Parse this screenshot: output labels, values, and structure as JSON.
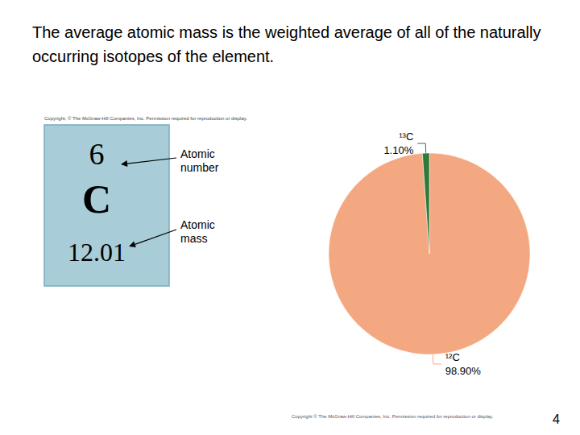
{
  "chart_data": {
    "type": "pie",
    "title": "The average atomic mass is the weighted average of all of the naturally occurring isotopes of the element.",
    "categories": [
      "¹²C",
      "¹³C"
    ],
    "values": [
      98.9,
      1.1
    ],
    "value_labels": [
      "98.90%",
      "1.10%"
    ],
    "colors": [
      "#F4A882",
      "#2D7A3A"
    ],
    "data_labels": true,
    "annotations": [
      "Copyright; © The McGraw-Hill Companies, Inc. Permission required for reproduction or display.",
      "6",
      "C",
      "12.01",
      "Atomic\nnumber",
      "Atomic\nmass",
      "Copyright © The McGraw-Hill Companies, Inc. Permission required for reproduction or display.",
      "4"
    ]
  }
}
